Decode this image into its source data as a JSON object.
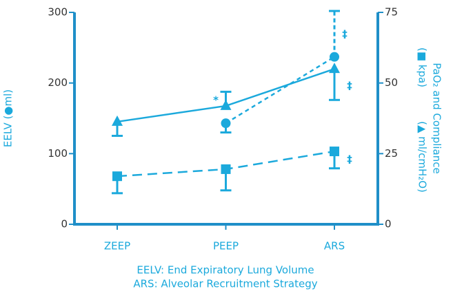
{
  "chart_data": {
    "type": "line",
    "categories": [
      "ZEEP",
      "PEEP",
      "ARS"
    ],
    "ylim": [
      0,
      300
    ],
    "yticks": [
      0,
      100,
      200,
      300
    ],
    "y2lim": [
      0,
      75
    ],
    "y2ticks": [
      0,
      25,
      50,
      75
    ],
    "y_label": "EELV (●ml)",
    "y2_label": [
      "PaO₂ and Compliance",
      "(■ kpa)",
      "(▲ ml/cmH₂O)"
    ],
    "series": [
      {
        "marker": "triangle",
        "color": "#1ba9dc",
        "dash": "none",
        "axis": "y2",
        "values": [
          36.3,
          41.9,
          55
        ],
        "errors": [
          5,
          5,
          11
        ],
        "error_side": [
          "down",
          "up",
          "down"
        ]
      },
      {
        "marker": "circle",
        "color": "#1ba9dc",
        "dash": "6,5",
        "axis": "y",
        "values": [
          null,
          143,
          237
        ],
        "errors": [
          null,
          13,
          65
        ],
        "error_side": [
          null,
          "down",
          "up"
        ]
      },
      {
        "marker": "square",
        "color": "#1ba9dc",
        "dash": "14,8",
        "axis": "y2",
        "values": [
          17,
          19.5,
          25.8
        ],
        "errors": [
          6,
          7.5,
          6
        ],
        "error_side": [
          "down",
          "down",
          "down"
        ]
      }
    ],
    "annotations": [
      "*",
      "‡",
      "‡",
      "‡"
    ],
    "footnotes": [
      "EELV: End Expiratory Lung Volume",
      "ARS: Alveolar Recruitment Strategy"
    ]
  }
}
